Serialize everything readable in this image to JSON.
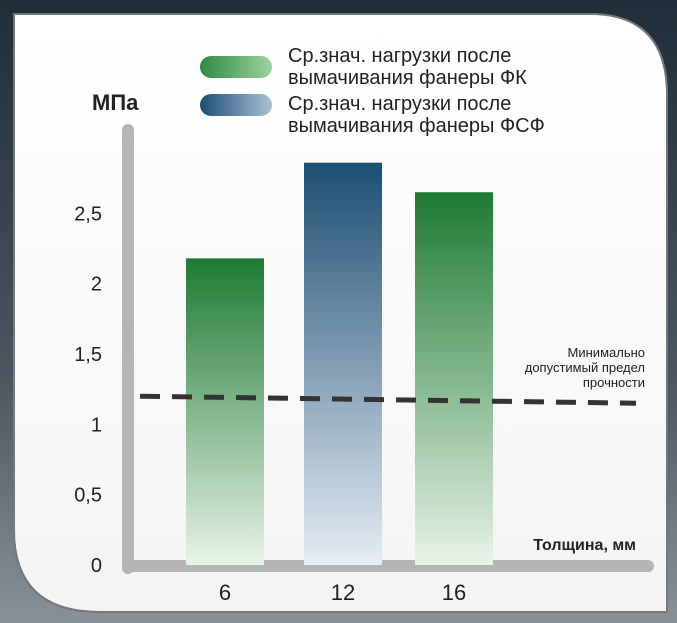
{
  "chart_data": {
    "type": "bar",
    "categories": [
      "6",
      "12",
      "16"
    ],
    "values": [
      2.18,
      2.86,
      2.65
    ],
    "bar_series": [
      "ФК",
      "ФСФ",
      "ФК"
    ],
    "ylim": [
      0,
      3
    ],
    "yticks": [
      0,
      0.5,
      1,
      1.5,
      2,
      2.5
    ],
    "ytick_labels": [
      "0",
      "0,5",
      "1",
      "1,5",
      "2",
      "2,5"
    ],
    "ylabel": "МПа",
    "xlabel": "Толщина, мм",
    "legend": [
      {
        "key": "ФК",
        "label_line1": "Ср.знач. нагрузки после",
        "label_line2": "вымачивания фанеры ФК",
        "color_top": "#1e7a32",
        "color_bottom": "#e8f3e8"
      },
      {
        "key": "ФСФ",
        "label_line1": "Ср.знач. нагрузки после",
        "label_line2": "вымачивания фанеры ФСФ",
        "color_top": "#1c4e73",
        "color_bottom": "#e6edf5"
      }
    ],
    "threshold": {
      "value_start": 1.2,
      "value_end": 1.15,
      "label_lines": [
        "Минимально",
        "допустимый предел",
        "прочности"
      ]
    },
    "grid": false,
    "legend_position": "top"
  }
}
